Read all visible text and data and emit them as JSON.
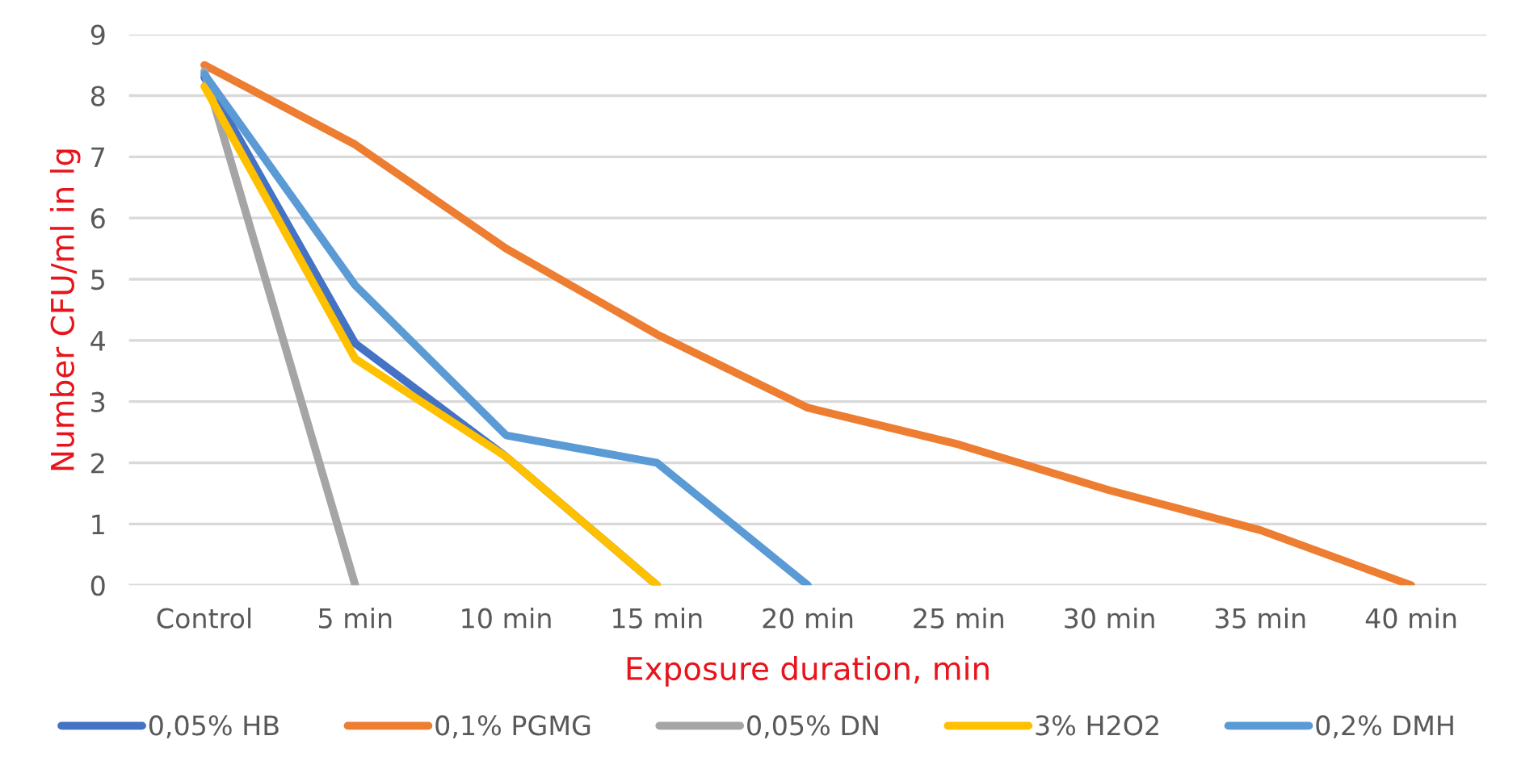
{
  "chart_data": {
    "type": "line",
    "xlabel": "Exposure duration, min",
    "ylabel": "Number CFU/ml in lg",
    "categories": [
      "Control",
      "5 min",
      "10 min",
      "15 min",
      "20 min",
      "25 min",
      "30 min",
      "35 min",
      "40 min"
    ],
    "series": [
      {
        "name": "0,05% HB",
        "color": "#4472c4",
        "values": [
          8.3,
          3.95,
          2.1,
          0,
          null,
          null,
          null,
          null,
          null
        ]
      },
      {
        "name": "0,1% PGMG",
        "color": "#ed7d31",
        "values": [
          8.5,
          7.2,
          5.5,
          4.1,
          2.9,
          2.3,
          1.55,
          0.9,
          0
        ]
      },
      {
        "name": "0,05% DN",
        "color": "#a5a5a5",
        "values": [
          8.4,
          0,
          null,
          null,
          null,
          null,
          null,
          null,
          null
        ]
      },
      {
        "name": "3% H2O2",
        "color": "#ffc000",
        "values": [
          8.15,
          3.7,
          2.1,
          0,
          null,
          null,
          null,
          null,
          null
        ]
      },
      {
        "name": "0,2% DMH",
        "color": "#5b9bd5",
        "values": [
          8.35,
          4.9,
          2.45,
          2.0,
          0,
          null,
          null,
          null,
          null
        ]
      }
    ],
    "ylim": [
      0,
      9
    ],
    "yticks": [
      0,
      1,
      2,
      3,
      4,
      5,
      6,
      7,
      8,
      9
    ],
    "grid": "y",
    "legend": "bottom",
    "marker": "none",
    "line_style": "solid"
  }
}
